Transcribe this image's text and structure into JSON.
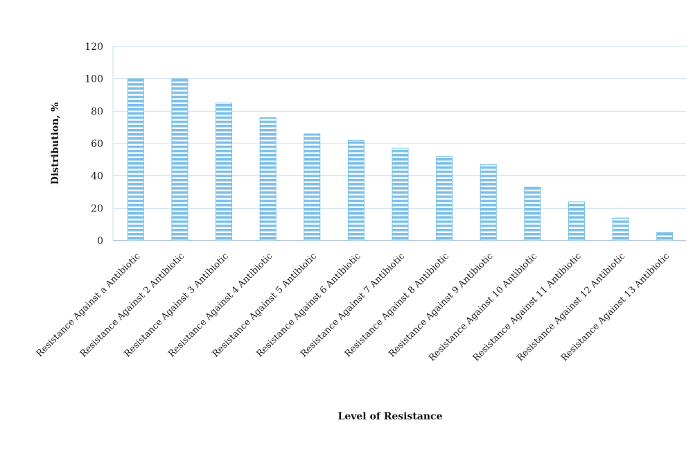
{
  "chart_data": {
    "type": "bar",
    "title": "",
    "xlabel": "Level of Resistance",
    "ylabel": "Distribution, %",
    "ylim": [
      0,
      120
    ],
    "yticks": [
      0,
      20,
      40,
      60,
      80,
      100,
      120
    ],
    "grid": true,
    "legend": "none",
    "bar_color": "#7cc0ea",
    "bar_stripe_color": "#ffffff",
    "grid_color": "#c9dde8",
    "categories": [
      "Resistance Against a Antibiotic",
      "Resistance Against 2 Antibiotic",
      "Resistance Against 3 Antibiotic",
      "Resistance Against 4 Antibiotic",
      "Resistance Against 5 Antibiotic",
      "Resistance Against 6 Antibiotic",
      "Resistance Against 7 Antibiotic",
      "Resistance Against 8 Antibiotic",
      "Resistance Against 9 Antibiotic",
      "Resistance Against 10 Antibiotic",
      "Resistance Against 11 Antibiotic",
      "Resistance Against 12 Antibiotic",
      "Resistance Against 13 Antibiotic"
    ],
    "values": [
      100,
      100,
      85,
      76,
      66,
      62,
      57,
      52,
      47,
      33,
      24,
      14,
      5
    ]
  }
}
